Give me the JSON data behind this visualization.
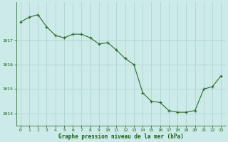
{
  "x": [
    0,
    1,
    2,
    3,
    4,
    5,
    6,
    7,
    8,
    9,
    10,
    11,
    12,
    13,
    14,
    15,
    16,
    17,
    18,
    19,
    20,
    21,
    22,
    23
  ],
  "y": [
    1017.75,
    1017.95,
    1018.05,
    1017.55,
    1017.2,
    1017.1,
    1017.25,
    1017.25,
    1017.1,
    1016.85,
    1016.9,
    1016.6,
    1016.25,
    1016.0,
    1014.85,
    1014.5,
    1014.45,
    1014.12,
    1014.05,
    1014.05,
    1014.12,
    1015.0,
    1015.1,
    1015.55
  ],
  "line_color": "#2d6a2d",
  "marker_color": "#2d6a2d",
  "bg_color": "#cceae8",
  "grid_color": "#aad0ce",
  "xlabel": "Graphe pression niveau de la mer (hPa)",
  "xlabel_color": "#1a5c1a",
  "tick_color": "#1a5c1a",
  "ylim": [
    1013.5,
    1018.55
  ],
  "yticks": [
    1014,
    1015,
    1016,
    1017
  ],
  "xticks": [
    0,
    1,
    2,
    3,
    4,
    5,
    6,
    7,
    8,
    9,
    10,
    11,
    12,
    13,
    14,
    15,
    16,
    17,
    18,
    19,
    20,
    21,
    22,
    23
  ],
  "figsize": [
    3.2,
    2.0
  ],
  "dpi": 100
}
